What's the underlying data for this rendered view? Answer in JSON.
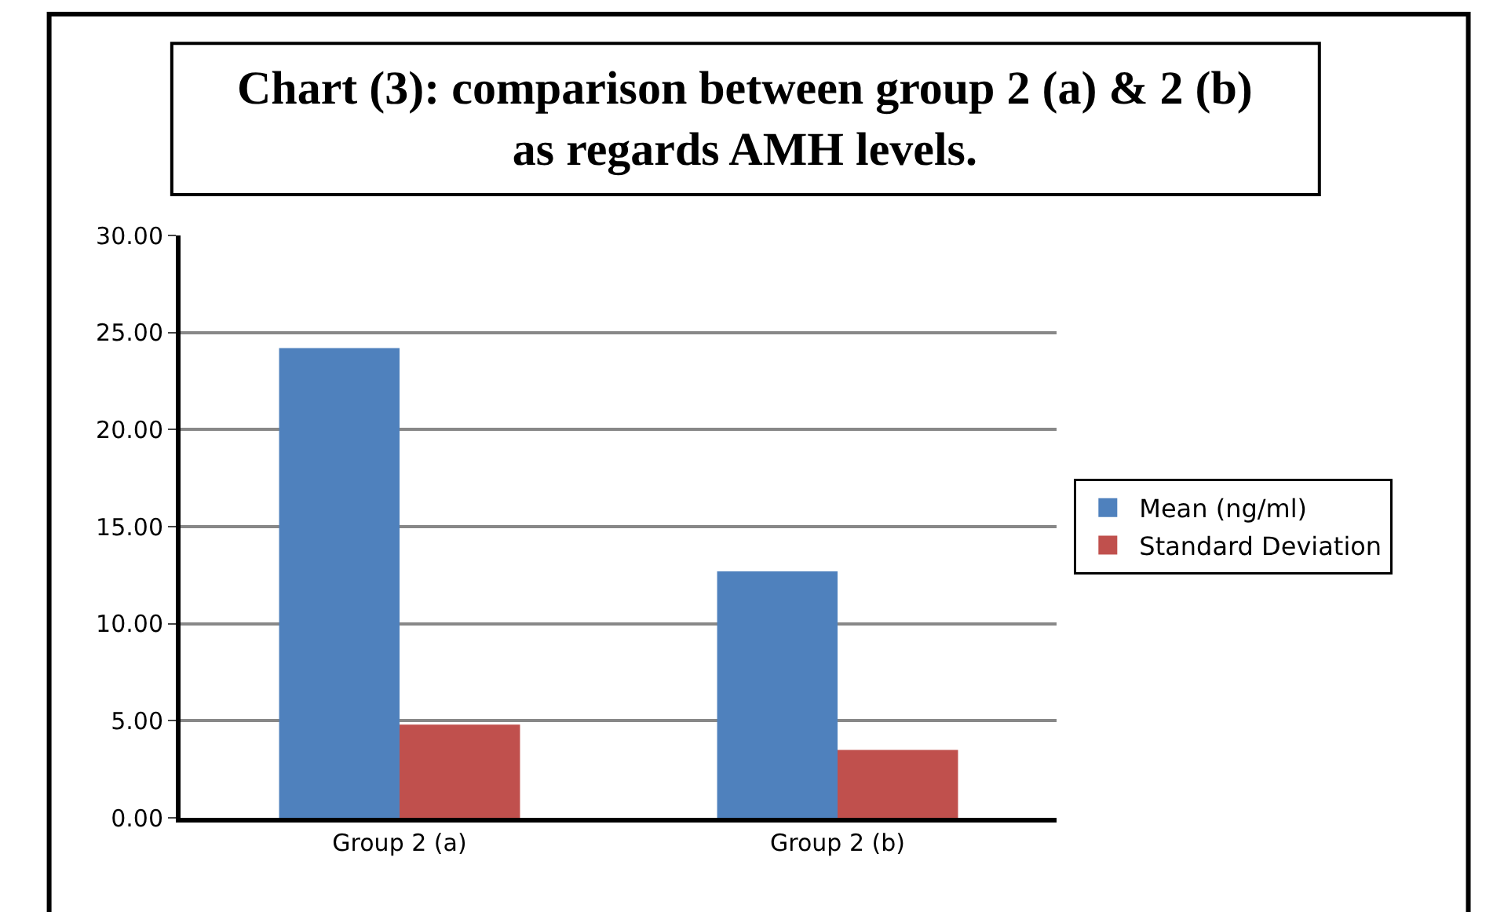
{
  "chart_data": {
    "type": "bar",
    "title": "Chart (3): comparison between group 2 (a) & 2 (b) as regards AMH levels.",
    "categories": [
      "Group 2 (a)",
      "Group 2 (b)"
    ],
    "series": [
      {
        "name": "Mean (ng/ml)",
        "color": "#4f81bd",
        "values": [
          24.2,
          12.7
        ]
      },
      {
        "name": "Standard Deviation",
        "color": "#c0504d",
        "values": [
          4.8,
          3.5
        ]
      }
    ],
    "ylim": [
      0,
      30
    ],
    "yticks": [
      {
        "value": 0,
        "label": "0.00"
      },
      {
        "value": 5,
        "label": "5.00"
      },
      {
        "value": 10,
        "label": "10.00"
      },
      {
        "value": 15,
        "label": "15.00"
      },
      {
        "value": 20,
        "label": "20.00"
      },
      {
        "value": 25,
        "label": "25.00"
      },
      {
        "value": 30,
        "label": "30.00"
      }
    ],
    "grid": "y",
    "legend": "right"
  }
}
